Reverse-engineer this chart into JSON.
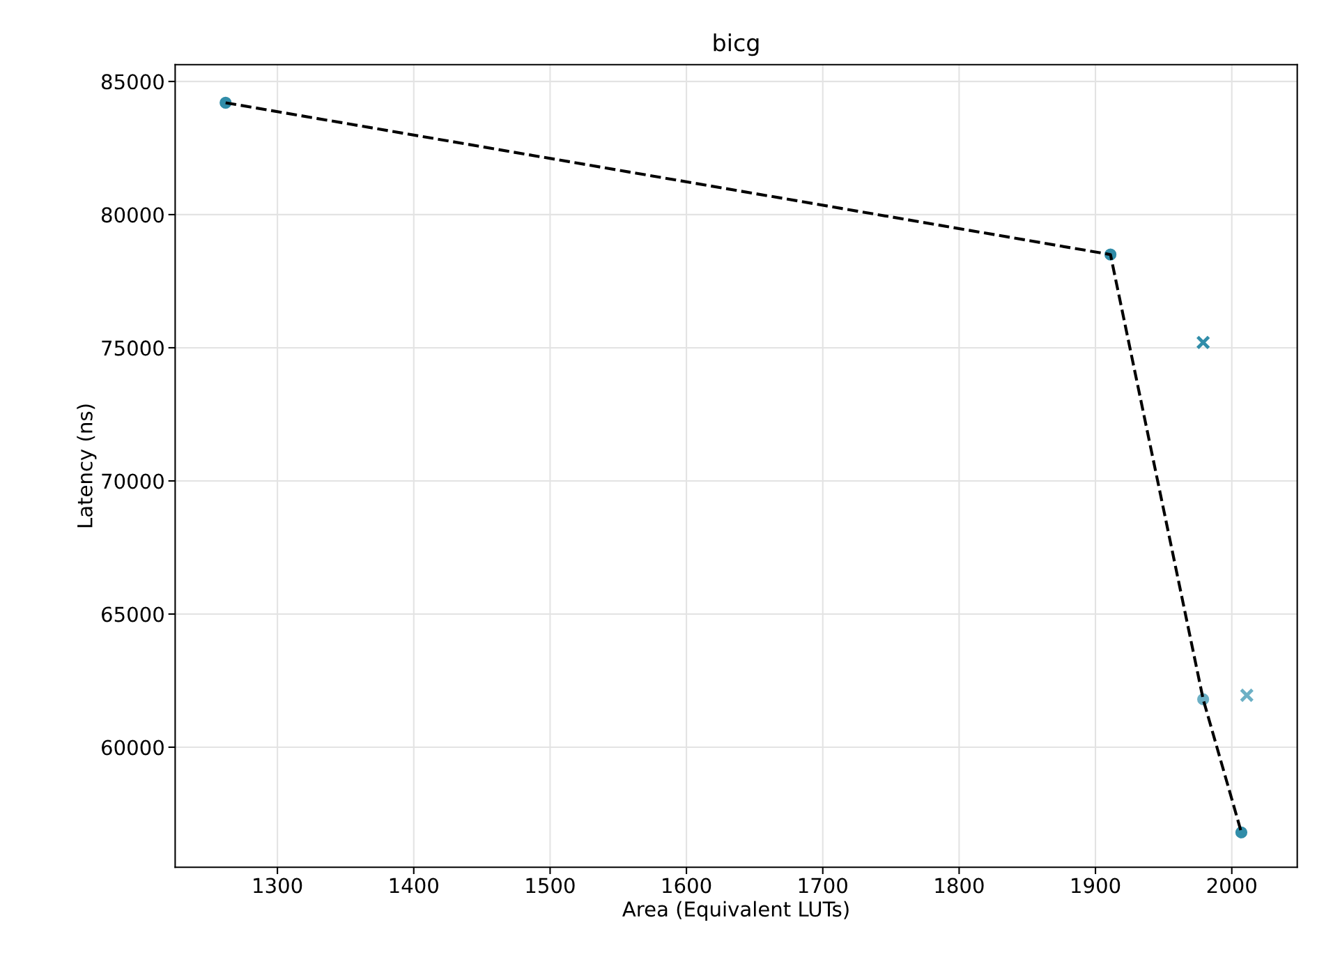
{
  "chart_data": {
    "type": "scatter",
    "title": "bicg",
    "xlabel": "Area (Equivalent LUTs)",
    "ylabel": "Latency (ns)",
    "xlim": [
      1225,
      2048
    ],
    "ylim": [
      55490,
      85630
    ],
    "xticks": [
      1300,
      1400,
      1500,
      1600,
      1700,
      1800,
      1900,
      2000
    ],
    "yticks": [
      60000,
      65000,
      70000,
      75000,
      80000,
      85000
    ],
    "grid": true,
    "series": [
      {
        "marker": "circle",
        "color": "#318da9",
        "x": [
          1262,
          1911,
          2007
        ],
        "values": [
          84200,
          78500,
          56800
        ]
      },
      {
        "marker": "circle",
        "color": "#6cb0c5",
        "x": [
          1979
        ],
        "values": [
          61800
        ]
      },
      {
        "marker": "cross",
        "color": "#318da9",
        "x": [
          1979
        ],
        "values": [
          75200
        ]
      },
      {
        "marker": "cross",
        "color": "#6cb0c5",
        "x": [
          2011
        ],
        "values": [
          61950
        ]
      },
      {
        "type": "line",
        "marker": "none",
        "line_style": "dashed",
        "color": "#000000",
        "x": [
          1262,
          1911,
          1979,
          2007
        ],
        "values": [
          84200,
          78500,
          61800,
          56800
        ]
      }
    ]
  }
}
